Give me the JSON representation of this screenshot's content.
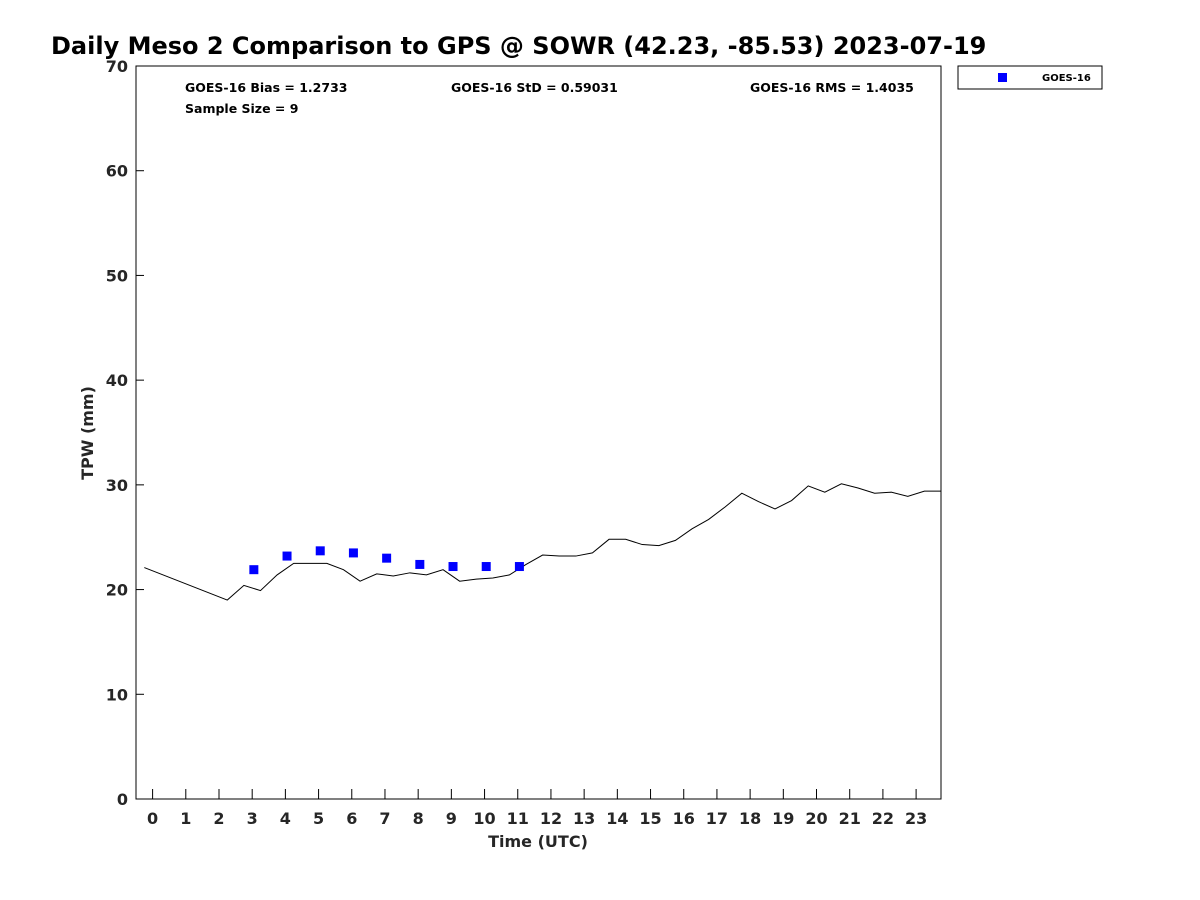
{
  "chart_data": {
    "type": "scatter",
    "title": "Daily Meso 2 Comparison to GPS @ SOWR (42.23, -85.53) 2023-07-19",
    "xlabel": "Time (UTC)",
    "ylabel": "TPW (mm)",
    "xlim": [
      -0.5,
      23.75
    ],
    "ylim": [
      0,
      70
    ],
    "x_ticks": [
      0,
      1,
      2,
      3,
      4,
      5,
      6,
      7,
      8,
      9,
      10,
      11,
      12,
      13,
      14,
      15,
      16,
      17,
      18,
      19,
      20,
      21,
      22,
      23
    ],
    "y_ticks": [
      0,
      10,
      20,
      30,
      40,
      50,
      60,
      70
    ],
    "grid": false,
    "legend_position": "outside-top-right",
    "annotations": {
      "bias": "GOES-16 Bias = 1.2733",
      "std": "GOES-16 StD = 0.59031",
      "rms": "GOES-16 RMS = 1.4035",
      "sample_size": "Sample Size = 9"
    },
    "series": [
      {
        "name": "GOES-16",
        "kind": "scatter",
        "marker": "square",
        "color": "#0000ff",
        "x": [
          3.05,
          4.05,
          5.05,
          6.05,
          7.05,
          8.05,
          9.05,
          10.05,
          11.05
        ],
        "y": [
          21.9,
          23.2,
          23.7,
          23.5,
          23.0,
          22.4,
          22.2,
          22.2,
          22.2
        ]
      },
      {
        "kind": "line",
        "color": "#000000",
        "x": [
          -0.25,
          2.25,
          2.75,
          3.25,
          3.75,
          4.25,
          4.75,
          5.25,
          5.75,
          6.25,
          6.75,
          7.25,
          7.75,
          8.25,
          8.75,
          9.25,
          9.75,
          10.25,
          10.75,
          11.25,
          11.75,
          12.25,
          12.75,
          13.25,
          13.75,
          14.25,
          14.75,
          15.25,
          15.75,
          16.25,
          16.75,
          17.25,
          17.75,
          18.25,
          18.75,
          19.25,
          19.75,
          20.25,
          20.75,
          21.25,
          21.75,
          22.25,
          22.75,
          23.25,
          23.75
        ],
        "y": [
          22.1,
          19.0,
          20.4,
          19.9,
          21.4,
          22.5,
          22.5,
          22.5,
          21.9,
          20.8,
          21.5,
          21.3,
          21.6,
          21.4,
          21.9,
          20.8,
          21.0,
          21.1,
          21.4,
          22.4,
          23.3,
          23.2,
          23.2,
          23.5,
          24.8,
          24.8,
          24.3,
          24.2,
          24.7,
          25.8,
          26.7,
          27.9,
          29.2,
          28.4,
          27.7,
          28.5,
          29.9,
          29.3,
          30.1,
          29.7,
          29.2,
          29.3,
          28.9,
          29.4,
          29.4
        ]
      }
    ]
  }
}
